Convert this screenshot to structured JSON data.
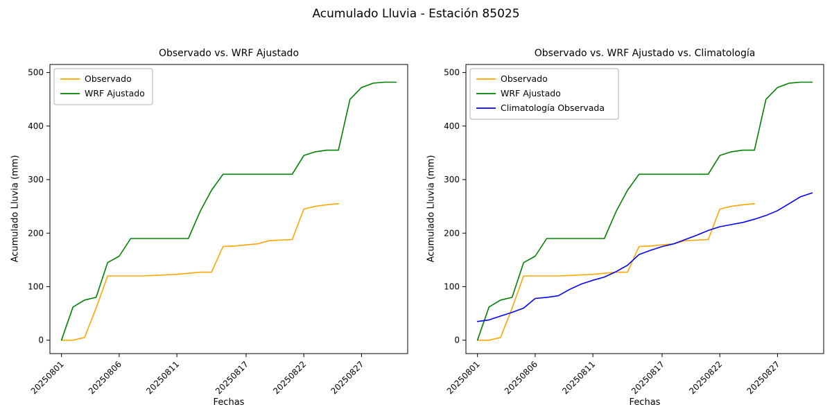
{
  "figure": {
    "title": "Acumulado Lluvia - Estación 85025"
  },
  "colors": {
    "observado": "#FFA500",
    "wrf_ajustado": "#008000",
    "climatologia": "#0000FF",
    "axis": "#000000",
    "legend_border": "#b0b0b0"
  },
  "chart_data": [
    {
      "type": "line",
      "title": "Observado vs. WRF Ajustado",
      "xlabel": "Fechas",
      "ylabel": "Acumulado Lluvia (mm)",
      "ylim": [
        0,
        500
      ],
      "yticks": [
        0,
        100,
        200,
        300,
        400,
        500
      ],
      "xticks": [
        {
          "day": 1,
          "label": "20250801"
        },
        {
          "day": 6,
          "label": "20250806"
        },
        {
          "day": 11,
          "label": "20250811"
        },
        {
          "day": 17,
          "label": "20250817"
        },
        {
          "day": 22,
          "label": "20250822"
        },
        {
          "day": 27,
          "label": "20250827"
        }
      ],
      "legend_position": "upper-left",
      "grid": false,
      "series": [
        {
          "name": "Observado",
          "color": "#FFA500",
          "days": [
            1,
            2,
            3,
            4,
            5,
            6,
            7,
            8,
            9,
            10,
            11,
            12,
            13,
            14,
            15,
            16,
            17,
            18,
            19,
            20,
            21,
            22,
            23,
            24,
            25
          ],
          "values": [
            0,
            0,
            5,
            60,
            120,
            120,
            120,
            120,
            121,
            122,
            123,
            125,
            127,
            127,
            175,
            176,
            178,
            180,
            186,
            187,
            188,
            245,
            250,
            253,
            255
          ]
        },
        {
          "name": "WRF Ajustado",
          "color": "#008000",
          "days": [
            1,
            2,
            3,
            4,
            5,
            6,
            7,
            8,
            9,
            10,
            11,
            12,
            13,
            14,
            15,
            16,
            17,
            18,
            19,
            20,
            21,
            22,
            23,
            24,
            25,
            26,
            27,
            28,
            29,
            30
          ],
          "values": [
            0,
            62,
            75,
            80,
            145,
            157,
            190,
            190,
            190,
            190,
            190,
            190,
            240,
            280,
            310,
            310,
            310,
            310,
            310,
            310,
            310,
            345,
            352,
            355,
            355,
            450,
            472,
            480,
            482,
            482
          ]
        }
      ]
    },
    {
      "type": "line",
      "title": "Observado vs. WRF Ajustado vs. Climatología",
      "xlabel": "Fechas",
      "ylabel": "Acumulado Lluvia (mm)",
      "ylim": [
        0,
        500
      ],
      "yticks": [
        0,
        100,
        200,
        300,
        400,
        500
      ],
      "xticks": [
        {
          "day": 1,
          "label": "20250801"
        },
        {
          "day": 6,
          "label": "20250806"
        },
        {
          "day": 11,
          "label": "20250811"
        },
        {
          "day": 17,
          "label": "20250817"
        },
        {
          "day": 22,
          "label": "20250822"
        },
        {
          "day": 27,
          "label": "20250827"
        }
      ],
      "legend_position": "upper-left",
      "grid": false,
      "series": [
        {
          "name": "Observado",
          "color": "#FFA500",
          "days": [
            1,
            2,
            3,
            4,
            5,
            6,
            7,
            8,
            9,
            10,
            11,
            12,
            13,
            14,
            15,
            16,
            17,
            18,
            19,
            20,
            21,
            22,
            23,
            24,
            25
          ],
          "values": [
            0,
            0,
            5,
            60,
            120,
            120,
            120,
            120,
            121,
            122,
            123,
            125,
            127,
            127,
            175,
            176,
            178,
            180,
            186,
            187,
            188,
            245,
            250,
            253,
            255
          ]
        },
        {
          "name": "WRF Ajustado",
          "color": "#008000",
          "days": [
            1,
            2,
            3,
            4,
            5,
            6,
            7,
            8,
            9,
            10,
            11,
            12,
            13,
            14,
            15,
            16,
            17,
            18,
            19,
            20,
            21,
            22,
            23,
            24,
            25,
            26,
            27,
            28,
            29,
            30
          ],
          "values": [
            0,
            62,
            75,
            80,
            145,
            157,
            190,
            190,
            190,
            190,
            190,
            190,
            240,
            280,
            310,
            310,
            310,
            310,
            310,
            310,
            310,
            345,
            352,
            355,
            355,
            450,
            472,
            480,
            482,
            482
          ]
        },
        {
          "name": "Climatología Observada",
          "color": "#0000FF",
          "days": [
            1,
            2,
            3,
            4,
            5,
            6,
            7,
            8,
            9,
            10,
            11,
            12,
            13,
            14,
            15,
            16,
            17,
            18,
            19,
            20,
            21,
            22,
            23,
            24,
            25,
            26,
            27,
            28,
            29,
            30
          ],
          "values": [
            35,
            38,
            45,
            52,
            60,
            78,
            80,
            83,
            95,
            105,
            112,
            118,
            128,
            140,
            160,
            168,
            175,
            180,
            188,
            196,
            205,
            212,
            216,
            220,
            226,
            233,
            242,
            255,
            268,
            275
          ]
        }
      ]
    }
  ]
}
